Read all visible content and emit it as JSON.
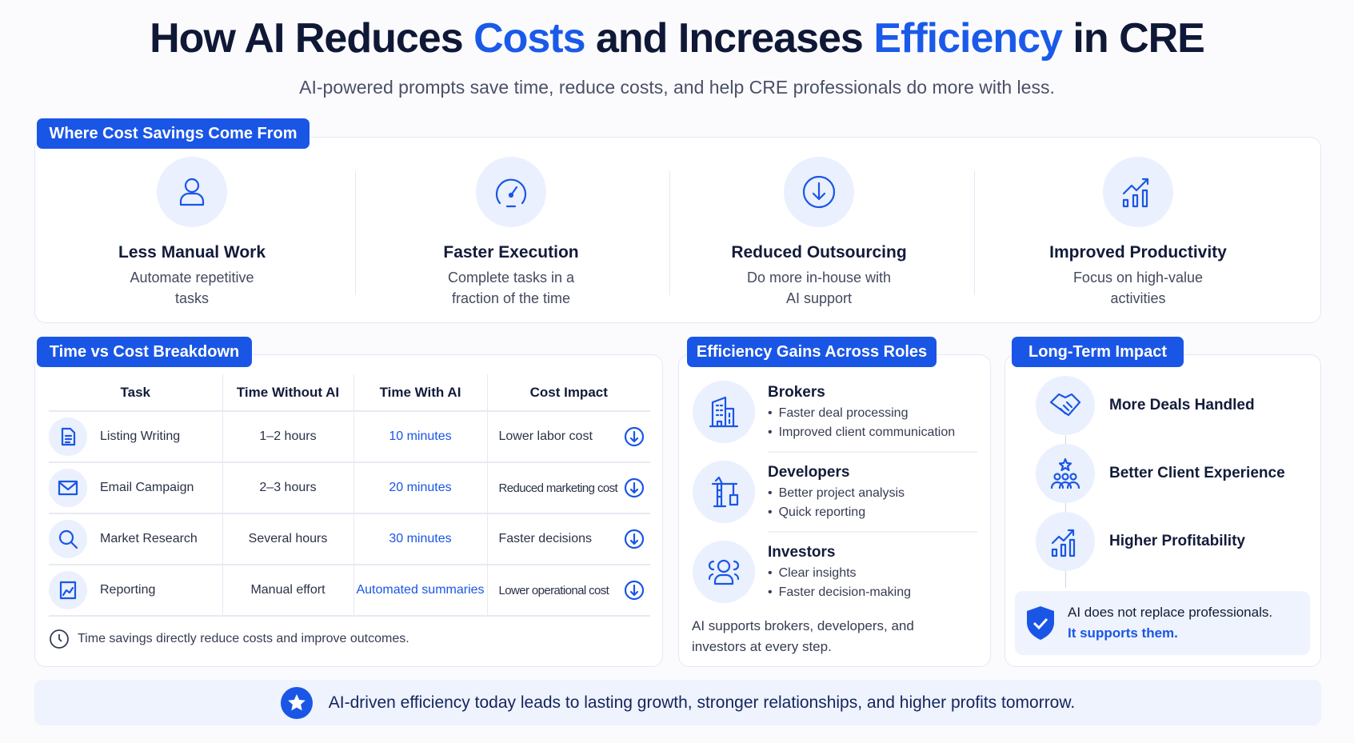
{
  "header": {
    "title_parts": [
      "How AI Reduces ",
      "Costs",
      " and Increases ",
      "Efficiency",
      " in CRE"
    ],
    "subtitle": "AI-powered prompts save time, reduce costs, and help CRE professionals do more with less."
  },
  "savings": {
    "tab": "Where Cost Savings Come From",
    "items": [
      {
        "icon": "user-icon",
        "title": "Less Manual Work",
        "desc1": "Automate repetitive",
        "desc2": "tasks"
      },
      {
        "icon": "speedometer-icon",
        "title": "Faster Execution",
        "desc1": "Complete tasks in a",
        "desc2": "fraction of the time"
      },
      {
        "icon": "arrow-down-circle-icon",
        "title": "Reduced Outsourcing",
        "desc1": "Do more in-house with",
        "desc2": "AI support"
      },
      {
        "icon": "growth-chart-icon",
        "title": "Improved Productivity",
        "desc1": "Focus on high-value",
        "desc2": "activities"
      }
    ]
  },
  "breakdown": {
    "tab": "Time vs Cost Breakdown",
    "columns": [
      "Task",
      "Time Without AI",
      "Time With AI",
      "Cost Impact"
    ],
    "rows": [
      {
        "icon": "document-icon",
        "task": "Listing Writing",
        "without": "1–2 hours",
        "with": "10 minutes",
        "impact": "Lower labor cost"
      },
      {
        "icon": "mail-icon",
        "task": "Email Campaign",
        "without": "2–3 hours",
        "with": "20 minutes",
        "impact": "Reduced marketing cost"
      },
      {
        "icon": "search-icon",
        "task": "Market Research",
        "without": "Several hours",
        "with": "30 minutes",
        "impact": "Faster decisions"
      },
      {
        "icon": "report-icon",
        "task": "Reporting",
        "without": "Manual effort",
        "with": "Automated summaries",
        "impact": "Lower operational cost"
      }
    ],
    "note": "Time savings directly reduce costs and improve outcomes."
  },
  "roles": {
    "tab": "Efficiency Gains Across Roles",
    "items": [
      {
        "icon": "building-icon",
        "name": "Brokers",
        "bullets": [
          "Faster deal processing",
          "Improved client communication"
        ]
      },
      {
        "icon": "crane-icon",
        "name": "Developers",
        "bullets": [
          "Better project analysis",
          "Quick reporting"
        ]
      },
      {
        "icon": "people-icon",
        "name": "Investors",
        "bullets": [
          "Clear insights",
          "Faster decision-making"
        ]
      }
    ],
    "summary": "AI supports brokers, developers, and investors at every step."
  },
  "impact": {
    "tab": "Long-Term Impact",
    "items": [
      {
        "icon": "handshake-icon",
        "label": "More Deals Handled"
      },
      {
        "icon": "client-star-icon",
        "label": "Better Client Experience"
      },
      {
        "icon": "growth-chart-icon",
        "label": "Higher Profitability"
      }
    ],
    "callout_line1": "AI does not replace professionals.",
    "callout_line2": "It supports them."
  },
  "banner": {
    "text": "AI-driven efficiency today leads to lasting growth, stronger relationships, and higher profits tomorrow."
  },
  "colors": {
    "accent": "#1a56e6",
    "text": "#131b3a",
    "soft": "#eaf0fd"
  }
}
